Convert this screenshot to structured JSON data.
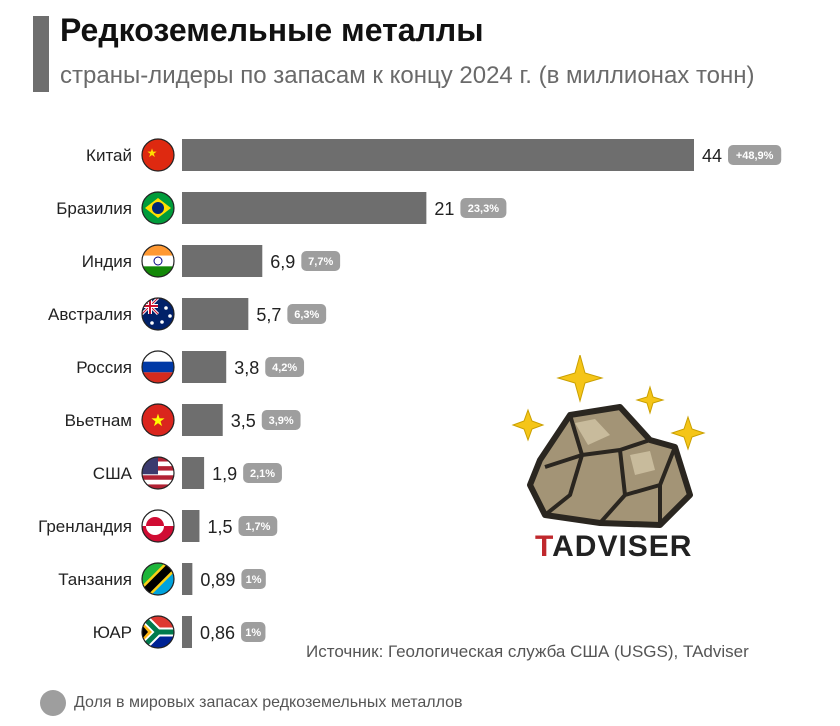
{
  "title": "Редкоземельные металлы",
  "subtitle": "страны-лидеры по запасам к концу 2024 г. (в миллионах тонн)",
  "source": "Источник: Геологическая служба США (USGS), TAdviser",
  "legend": "Доля в мировых запасах редкоземельных металлов",
  "logo": {
    "first_letter": "T",
    "rest": "ADVISER"
  },
  "colors": {
    "bar": "#6e6e6e",
    "badge": "#9e9e9e",
    "badge_text": "#ffffff",
    "accent_logo": "#c0282d"
  },
  "chart_data": {
    "type": "bar",
    "orientation": "horizontal",
    "categories": [
      "Китай",
      "Бразилия",
      "Индия",
      "Австралия",
      "Россия",
      "Вьетнам",
      "США",
      "Гренландия",
      "Танзания",
      "ЮАР"
    ],
    "values": [
      44,
      21,
      6.9,
      5.7,
      3.8,
      3.5,
      1.9,
      1.5,
      0.89,
      0.86
    ],
    "value_labels": [
      "44",
      "21",
      "6,9",
      "5,7",
      "3,8",
      "3,5",
      "1,9",
      "1,5",
      "0,89",
      "0,86"
    ],
    "share_labels": [
      "+48,9%",
      "23,3%",
      "7,7%",
      "6,3%",
      "4,2%",
      "3,9%",
      "2,1%",
      "1,7%",
      "1%",
      "1%"
    ],
    "flags": [
      "china-flag-icon",
      "brazil-flag-icon",
      "india-flag-icon",
      "australia-flag-icon",
      "russia-flag-icon",
      "vietnam-flag-icon",
      "usa-flag-icon",
      "greenland-flag-icon",
      "tanzania-flag-icon",
      "south-africa-flag-icon"
    ],
    "title": "Редкоземельные металлы",
    "xlim": [
      0,
      44
    ],
    "grid": false
  }
}
